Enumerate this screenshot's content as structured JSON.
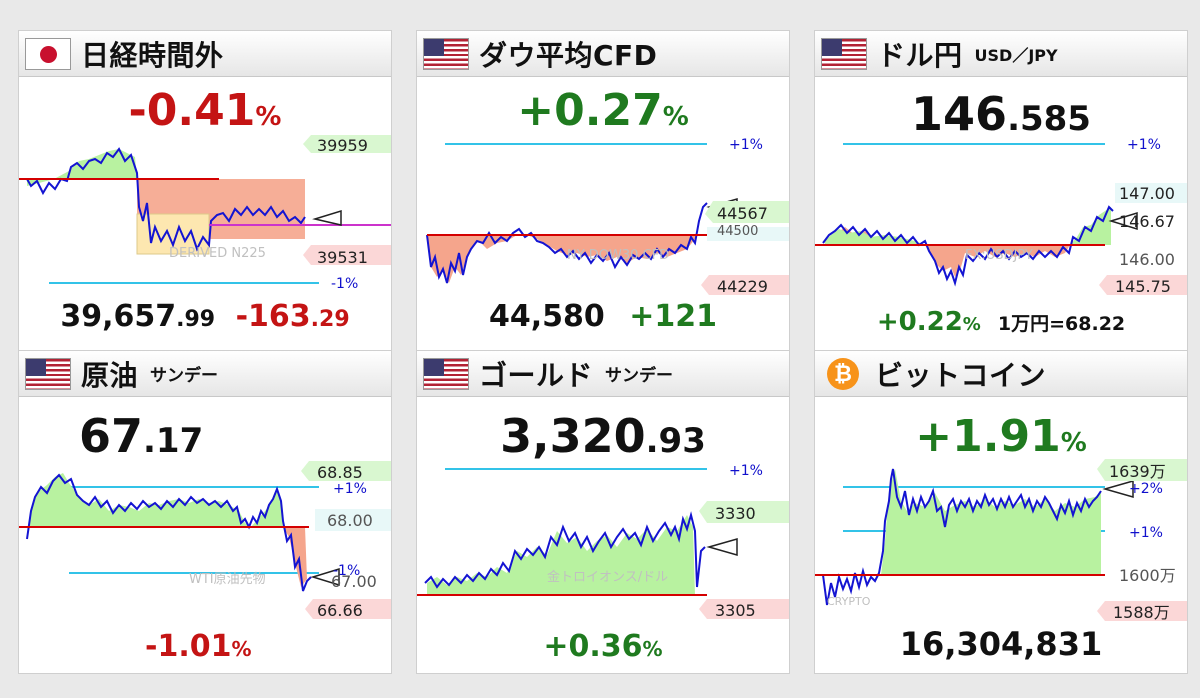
{
  "panels": {
    "nikkei": {
      "title": "日経時間外",
      "change_pct": "-0.41",
      "pct_sign": "%",
      "price_main": "39,657",
      "price_dec": ".99",
      "change_main": "-163",
      "change_dec": ".29",
      "watermark": "DERIVED N225",
      "labels": {
        "top": "39959",
        "bottom": "39531",
        "minus1": "-1%"
      }
    },
    "dow": {
      "title": "ダウ平均CFD",
      "change_pct": "+0.27",
      "pct_sign": "%",
      "price": "44,580",
      "change": "+121",
      "watermark": "NY DOW30 CFD",
      "labels": {
        "plus1": "+1%",
        "top": "44567",
        "top_under": "44500",
        "bottom": "44229"
      }
    },
    "usdjpy": {
      "title": "ドル円",
      "subtitle": "USD／JPY",
      "price_main": "146",
      "price_dec": ".585",
      "change_pct": "+0.22",
      "pct_sign": "%",
      "note": "1万円=68.22",
      "watermark": "FX:USDJPY",
      "labels": {
        "plus1": "+1%",
        "l1": "147.00",
        "l2": "146.67",
        "l3": "146.00",
        "l4": "145.75"
      }
    },
    "oil": {
      "title": "原油",
      "subtitle": "サンデー",
      "price_main": "67",
      "price_dec": ".17",
      "change_pct": "-1.01",
      "pct_sign": "%",
      "watermark": "WTI原油先物",
      "labels": {
        "top": "68.85",
        "plus1": "+1%",
        "mid": "68.00",
        "minus1": "-1%",
        "under": "67.00",
        "bottom": "66.66"
      }
    },
    "gold": {
      "title": "ゴールド",
      "subtitle": "サンデー",
      "price_main": "3,320",
      "price_dec": ".93",
      "change_pct": "+0.36",
      "pct_sign": "%",
      "watermark": "金トロイオンス/ドル",
      "labels": {
        "plus1": "+1%",
        "top": "3330",
        "bottom": "3305"
      }
    },
    "btc": {
      "title": "ビットコイン",
      "change_pct": "+1.91",
      "pct_sign": "%",
      "price": "16,304,831",
      "watermark": "CRYPTO",
      "labels": {
        "top": "1639万",
        "plus2": "+2%",
        "plus1": "+1%",
        "mid": "1600万",
        "bottom": "1588万"
      }
    }
  },
  "colors": {
    "up": "#1f7a1f",
    "down": "#c41414",
    "series": "#1414d2",
    "fill_up": "#b8f2a0",
    "fill_down": "#f5a58c",
    "ref_line": "#d40000",
    "pct_line": "#33c3e8"
  }
}
